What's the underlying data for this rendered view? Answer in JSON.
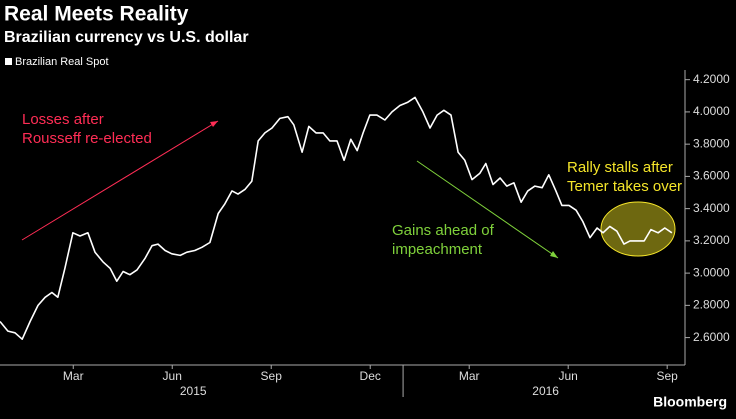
{
  "chart_data": {
    "type": "line",
    "title": "Real Meets Reality",
    "subtitle": "Brazilian currency vs U.S. dollar",
    "source": "Bloomberg",
    "x": [
      2014.982,
      2015.002,
      2015.02,
      2015.038,
      2015.058,
      2015.078,
      2015.096,
      2015.113,
      2015.128,
      2015.146,
      2015.166,
      2015.184,
      2015.204,
      2015.222,
      2015.242,
      2015.26,
      2015.277,
      2015.293,
      2015.31,
      2015.328,
      2015.348,
      2015.366,
      2015.381,
      2015.399,
      2015.416,
      2015.437,
      2015.454,
      2015.474,
      2015.492,
      2015.512,
      2015.533,
      2015.55,
      2015.568,
      2015.583,
      2015.601,
      2015.618,
      2015.634,
      2015.651,
      2015.669,
      2015.689,
      2015.709,
      2015.724,
      2015.745,
      2015.762,
      2015.78,
      2015.798,
      2015.815,
      2015.833,
      2015.851,
      2015.868,
      2015.884,
      2015.899,
      2015.916,
      2015.934,
      2015.954,
      2015.972,
      2015.992,
      2016.012,
      2016.03,
      2016.05,
      2016.068,
      2016.086,
      2016.103,
      2016.121,
      2016.139,
      2016.156,
      2016.174,
      2016.194,
      2016.209,
      2016.227,
      2016.245,
      2016.262,
      2016.28,
      2016.298,
      2016.315,
      2016.333,
      2016.351,
      2016.368,
      2016.386,
      2016.401,
      2016.419,
      2016.437,
      2016.454,
      2016.472,
      2016.49,
      2016.505,
      2016.522,
      2016.54,
      2016.558,
      2016.573,
      2016.591,
      2016.609,
      2016.626,
      2016.644,
      2016.661,
      2016.679
    ],
    "series": [
      {
        "name": "Brazilian Real Spot",
        "color": "#ffffff",
        "values": [
          2.7,
          2.64,
          2.63,
          2.59,
          2.7,
          2.8,
          2.85,
          2.88,
          2.85,
          3.03,
          3.25,
          3.23,
          3.25,
          3.13,
          3.07,
          3.03,
          2.95,
          3.01,
          2.99,
          3.02,
          3.09,
          3.17,
          3.18,
          3.14,
          3.12,
          3.11,
          3.13,
          3.14,
          3.16,
          3.19,
          3.37,
          3.43,
          3.51,
          3.49,
          3.52,
          3.57,
          3.82,
          3.87,
          3.9,
          3.96,
          3.97,
          3.92,
          3.75,
          3.91,
          3.87,
          3.87,
          3.82,
          3.82,
          3.7,
          3.83,
          3.76,
          3.87,
          3.98,
          3.98,
          3.95,
          4.0,
          4.04,
          4.06,
          4.09,
          4.0,
          3.9,
          3.98,
          4.01,
          3.98,
          3.75,
          3.7,
          3.58,
          3.62,
          3.68,
          3.55,
          3.59,
          3.54,
          3.56,
          3.44,
          3.51,
          3.54,
          3.53,
          3.61,
          3.51,
          3.42,
          3.42,
          3.39,
          3.32,
          3.22,
          3.28,
          3.25,
          3.29,
          3.26,
          3.18,
          3.2,
          3.2,
          3.2,
          3.27,
          3.25,
          3.28,
          3.25
        ]
      }
    ],
    "xlim": [
      2014.982,
      2016.712
    ],
    "ylim": [
      2.43,
      4.26
    ],
    "yticks": [
      {
        "value": 2.6,
        "label": "2.6000"
      },
      {
        "value": 2.8,
        "label": "2.8000"
      },
      {
        "value": 3.0,
        "label": "3.0000"
      },
      {
        "value": 3.2,
        "label": "3.2000"
      },
      {
        "value": 3.4,
        "label": "3.4000"
      },
      {
        "value": 3.6,
        "label": "3.6000"
      },
      {
        "value": 3.8,
        "label": "3.8000"
      },
      {
        "value": 4.0,
        "label": "4.0000"
      },
      {
        "value": 4.2,
        "label": "4.2000"
      }
    ],
    "xticks": [
      {
        "value": 2015.167,
        "label": "Mar"
      },
      {
        "value": 2015.417,
        "label": "Jun"
      },
      {
        "value": 2015.667,
        "label": "Sep"
      },
      {
        "value": 2015.917,
        "label": "Dec"
      },
      {
        "value": 2016.167,
        "label": "Mar"
      },
      {
        "value": 2016.417,
        "label": "Jun"
      },
      {
        "value": 2016.667,
        "label": "Sep"
      }
    ],
    "year_labels": [
      {
        "value": 2015.47,
        "label": "2015"
      },
      {
        "value": 2016.36,
        "label": "2016"
      }
    ],
    "year_ticks": [
      2016
    ],
    "grid": false,
    "annotations": [
      {
        "lines": [
          "Losses after",
          "Rousseff re-elected"
        ],
        "color": "#ff2d55"
      },
      {
        "lines": [
          "Gains ahead of",
          "impeachment"
        ],
        "color": "#7fd13b"
      },
      {
        "lines": [
          "Rally stalls after",
          "Temer takes over"
        ],
        "color": "#f5e52a"
      }
    ]
  }
}
